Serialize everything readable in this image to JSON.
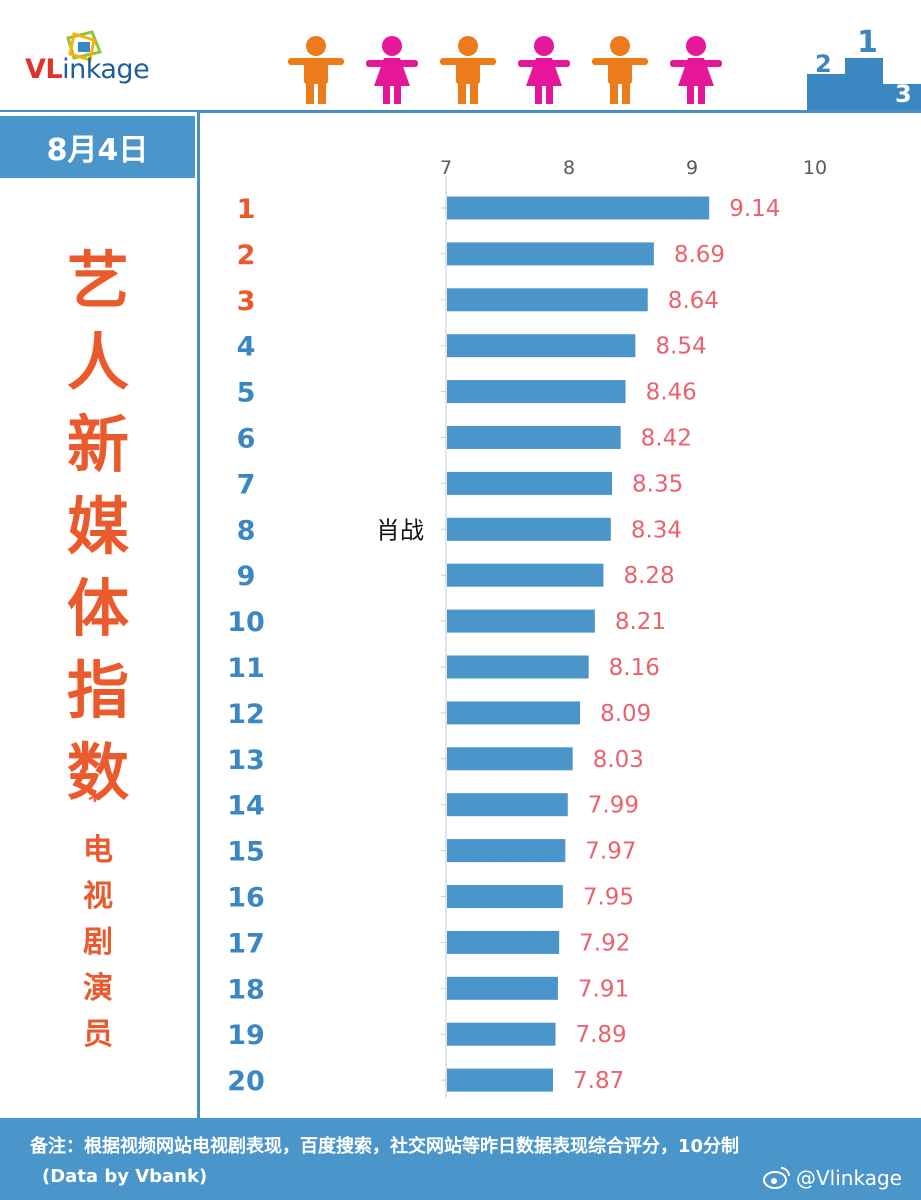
{
  "brand": {
    "logo_text_red": "VL",
    "logo_text_blue": "inkage"
  },
  "date_label": "8月4日",
  "title_chars": [
    "艺",
    "人",
    "新",
    "媒",
    "体",
    "指",
    "数"
  ],
  "title_star": "*",
  "subtitle_chars": [
    "电",
    "视",
    "剧",
    "演",
    "员"
  ],
  "colors": {
    "bar": "#4a95c9",
    "value_label": "#e8636d",
    "rank_top3": "#ea5a2d",
    "rank_rest": "#3a87c2",
    "title": "#ea5a2d",
    "accent_blue": "#4a95c9",
    "male_icon": "#ec7b1a",
    "female_icon": "#e5169a"
  },
  "header_icons": [
    "male-person-icon",
    "female-person-icon",
    "male-person-icon",
    "female-person-icon",
    "male-person-icon",
    "female-person-icon"
  ],
  "podium_labels": [
    "2",
    "1",
    "3"
  ],
  "chart_data": {
    "type": "bar",
    "orientation": "horizontal",
    "categories": [
      "1",
      "2",
      "3",
      "4",
      "5",
      "6",
      "7",
      "8",
      "9",
      "10",
      "11",
      "12",
      "13",
      "14",
      "15",
      "16",
      "17",
      "18",
      "19",
      "20"
    ],
    "values": [
      9.14,
      8.69,
      8.64,
      8.54,
      8.46,
      8.42,
      8.35,
      8.34,
      8.28,
      8.21,
      8.16,
      8.09,
      8.03,
      7.99,
      7.97,
      7.95,
      7.92,
      7.91,
      7.89,
      7.87
    ],
    "value_labels": [
      "9.14",
      "8.69",
      "8.64",
      "8.54",
      "8.46",
      "8.42",
      "8.35",
      "8.34",
      "8.28",
      "8.21",
      "8.16",
      "8.09",
      "8.03",
      "7.99",
      "7.97",
      "7.95",
      "7.92",
      "7.91",
      "7.89",
      "7.87"
    ],
    "xlim": [
      7,
      10
    ],
    "x_ticks": [
      "7",
      "8",
      "9",
      "10"
    ],
    "annotation": {
      "text": "肖战",
      "category": "8"
    },
    "grid": false
  },
  "footer": {
    "note": "备注：根据视频网站电视剧表现，百度搜索，社交网站等昨日数据表现综合评分，10分制",
    "source": "(Data by Vbank)",
    "handle": "@Vlinkage"
  }
}
